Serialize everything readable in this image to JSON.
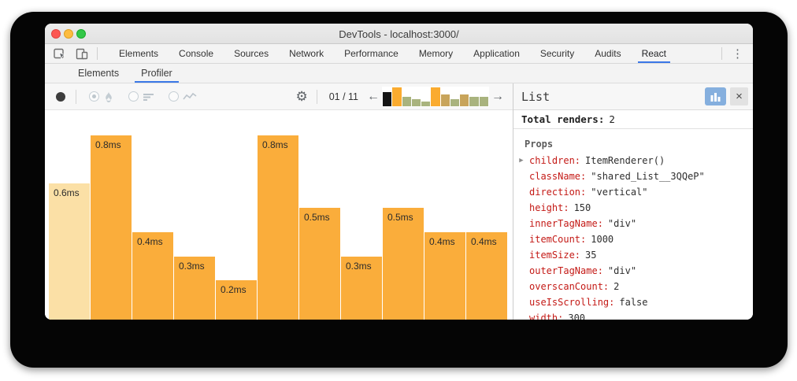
{
  "window": {
    "title": "DevTools - localhost:3000/"
  },
  "chrome_tabs": {
    "items": [
      "Elements",
      "Console",
      "Sources",
      "Network",
      "Performance",
      "Memory",
      "Application",
      "Security",
      "Audits",
      "React"
    ],
    "active_index": 9
  },
  "react_tabs": {
    "items": [
      "Elements",
      "Profiler"
    ],
    "active_index": 1
  },
  "profiler_toolbar": {
    "commit_counter": "01 / 11",
    "prev_arrow": "←",
    "next_arrow": "→",
    "gear": "⚙",
    "kebab": "⋮"
  },
  "commit_selector": {
    "bars": [
      {
        "value": 0.6,
        "color": "#161616",
        "selected": true
      },
      {
        "value": 0.8,
        "color": "#FAAB2F",
        "selected": false
      },
      {
        "value": 0.4,
        "color": "#A9B37E",
        "selected": false
      },
      {
        "value": 0.3,
        "color": "#A9B37E",
        "selected": false
      },
      {
        "value": 0.2,
        "color": "#A9B37E",
        "selected": false
      },
      {
        "value": 0.8,
        "color": "#FAAB2F",
        "selected": false
      },
      {
        "value": 0.5,
        "color": "#C8A45A",
        "selected": false
      },
      {
        "value": 0.3,
        "color": "#A9B37E",
        "selected": false
      },
      {
        "value": 0.5,
        "color": "#C8A45A",
        "selected": false
      },
      {
        "value": 0.4,
        "color": "#A9B37E",
        "selected": false
      },
      {
        "value": 0.4,
        "color": "#A9B37E",
        "selected": false
      }
    ]
  },
  "chart_data": {
    "type": "bar",
    "values": [
      0.6,
      0.8,
      0.4,
      0.3,
      0.2,
      0.8,
      0.5,
      0.3,
      0.5,
      0.4,
      0.4
    ],
    "labels": [
      "0.6ms",
      "0.8ms",
      "0.4ms",
      "0.3ms",
      "0.2ms",
      "0.8ms",
      "0.5ms",
      "0.3ms",
      "0.5ms",
      "0.4ms",
      "0.4ms"
    ],
    "unit": "ms",
    "selected_index": 0,
    "ylim": [
      0,
      0.8
    ],
    "bar_color": "#FAAD3B",
    "selected_bar_color": "#FBE0A6",
    "legend": "none",
    "grid": false
  },
  "panel": {
    "title": "List",
    "total_renders_label": "Total renders:",
    "total_renders_value": "2",
    "props_label": "Props",
    "close_icon": "×",
    "props": [
      {
        "key": "children",
        "value": "ItemRenderer()",
        "expandable": true
      },
      {
        "key": "className",
        "value": "\"shared_List__3QQeP\"",
        "expandable": false
      },
      {
        "key": "direction",
        "value": "\"vertical\"",
        "expandable": false
      },
      {
        "key": "height",
        "value": "150",
        "expandable": false
      },
      {
        "key": "innerTagName",
        "value": "\"div\"",
        "expandable": false
      },
      {
        "key": "itemCount",
        "value": "1000",
        "expandable": false
      },
      {
        "key": "itemSize",
        "value": "35",
        "expandable": false
      },
      {
        "key": "outerTagName",
        "value": "\"div\"",
        "expandable": false
      },
      {
        "key": "overscanCount",
        "value": "2",
        "expandable": false
      },
      {
        "key": "useIsScrolling",
        "value": "false",
        "expandable": false
      },
      {
        "key": "width",
        "value": "300",
        "expandable": false
      }
    ]
  },
  "colors": {
    "accent_blue": "#3B78E7",
    "prop_key_red": "#C41A16",
    "bar_orange": "#FAAD3B",
    "bar_selected": "#FBE0A6"
  }
}
